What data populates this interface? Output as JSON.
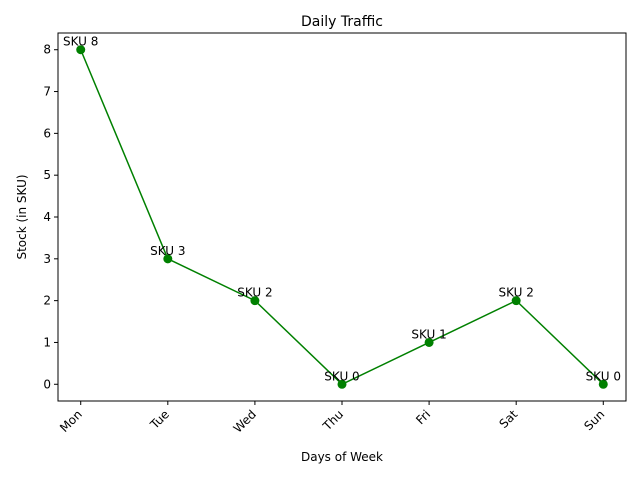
{
  "chart_data": {
    "type": "line",
    "title": "Daily Traffic",
    "xlabel": "Days of Week",
    "ylabel": "Stock (in SKU)",
    "categories": [
      "Mon",
      "Tue",
      "Wed",
      "Thu",
      "Fri",
      "Sat",
      "Sun"
    ],
    "values": [
      8,
      3,
      2,
      0,
      1,
      2,
      0
    ],
    "data_labels": [
      "SKU 8",
      "SKU 3",
      "SKU 2",
      "SKU 0",
      "SKU 1",
      "SKU 2",
      "SKU 0"
    ],
    "yticks": [
      0,
      1,
      2,
      3,
      4,
      5,
      6,
      7,
      8
    ],
    "ylim": [
      -0.4,
      8.4
    ],
    "grid": false,
    "x_tick_rotation": "45 degrees",
    "colors": {
      "line": "#008000",
      "marker": "#008000",
      "axes": "#000000"
    }
  }
}
